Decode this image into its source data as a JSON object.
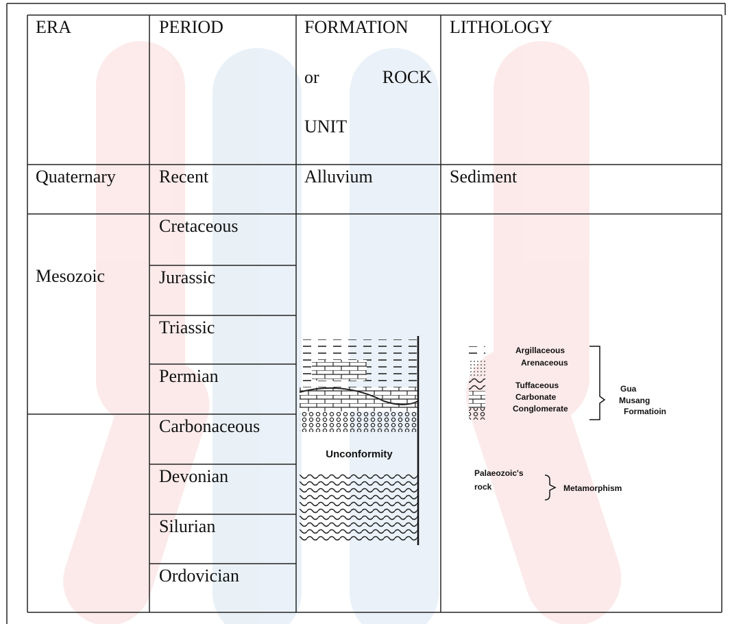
{
  "header": {
    "era": "ERA",
    "period": "PERIOD",
    "formation": [
      "FORMATION",
      "or",
      "ROCK",
      "UNIT"
    ],
    "lithology": "LITHOLOGY"
  },
  "rows": {
    "quaternary": {
      "era": "Quaternary",
      "period": "Recent",
      "formation": "Alluvium",
      "lithology": "Sediment"
    },
    "mesozoic": {
      "era": "Mesozoic",
      "periods": [
        "Cretaceous",
        "Jurassic",
        "Triassic",
        "Permian",
        "Carbonaceous",
        "Devonian",
        "Silurian",
        "Ordovician"
      ]
    }
  },
  "formation_diagram": {
    "unconformity": "Unconformity"
  },
  "lithology_diagram": {
    "layers": [
      "Argillaceous",
      "Arenaceous",
      "Tuffaceous",
      "Carbonate",
      "Conglomerate"
    ],
    "group": [
      "Gua",
      "Musang",
      "Formatioin"
    ],
    "basement": [
      "Palaeozoic's",
      "rock"
    ],
    "process": "Metamorphism"
  }
}
